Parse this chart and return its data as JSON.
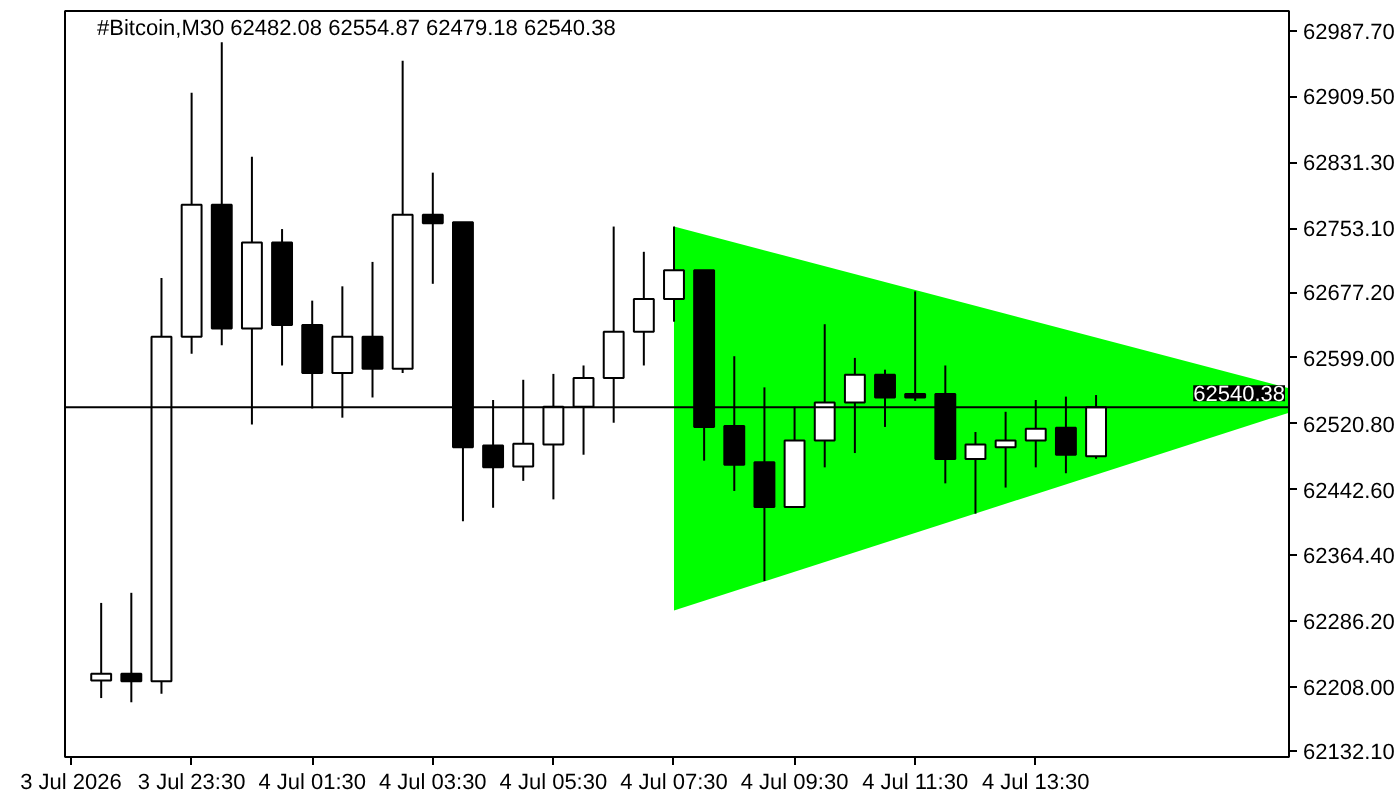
{
  "chart_data": {
    "type": "candlestick",
    "title": "#Bitcoin,M30  62482.08 62554.87 62479.18 62540.38",
    "x": [
      "2026-07-03T22:00",
      "2026-07-03T22:30",
      "2026-07-03T23:00",
      "2026-07-03T23:30",
      "2026-07-04T00:00",
      "2026-07-04T00:30",
      "2026-07-04T01:00",
      "2026-07-04T01:30",
      "2026-07-04T02:00",
      "2026-07-04T02:30",
      "2026-07-04T03:00",
      "2026-07-04T03:30",
      "2026-07-04T04:00",
      "2026-07-04T04:30",
      "2026-07-04T05:00",
      "2026-07-04T05:30",
      "2026-07-04T06:00",
      "2026-07-04T06:30",
      "2026-07-04T07:00",
      "2026-07-04T07:30",
      "2026-07-04T08:00",
      "2026-07-04T08:30",
      "2026-07-04T09:00",
      "2026-07-04T09:30",
      "2026-07-04T10:00",
      "2026-07-04T10:30",
      "2026-07-04T11:00",
      "2026-07-04T11:30",
      "2026-07-04T12:00",
      "2026-07-04T12:30",
      "2026-07-04T13:00",
      "2026-07-04T13:30",
      "2026-07-04T14:00",
      "2026-07-04T14:30"
    ],
    "ohlc": [
      [
        62216,
        62308,
        62195,
        62224
      ],
      [
        62224,
        62320,
        62190,
        62215
      ],
      [
        62215,
        62694,
        62200,
        62624
      ],
      [
        62624,
        62914,
        62604,
        62781
      ],
      [
        62781,
        62974,
        62614,
        62634
      ],
      [
        62634,
        62838,
        62520,
        62736
      ],
      [
        62736,
        62752,
        62590,
        62638
      ],
      [
        62638,
        62667,
        62539,
        62581
      ],
      [
        62581,
        62684,
        62528,
        62624
      ],
      [
        62624,
        62713,
        62552,
        62586
      ],
      [
        62586,
        62952,
        62581,
        62769
      ],
      [
        62769,
        62819,
        62687,
        62759
      ],
      [
        62760,
        62760,
        62405,
        62493
      ],
      [
        62495,
        62549,
        62421,
        62469
      ],
      [
        62470,
        62573,
        62453,
        62497
      ],
      [
        62496,
        62580,
        62431,
        62541
      ],
      [
        62541,
        62590,
        62484,
        62575
      ],
      [
        62575,
        62755,
        62522,
        62630
      ],
      [
        62630,
        62725,
        62590,
        62669
      ],
      [
        62669,
        62755,
        62642,
        62703
      ],
      [
        62703,
        62703,
        62477,
        62517
      ],
      [
        62518,
        62601,
        62441,
        62472
      ],
      [
        62475,
        62564,
        62334,
        62422
      ],
      [
        62422,
        62541,
        62422,
        62501
      ],
      [
        62501,
        62639,
        62469,
        62546
      ],
      [
        62546,
        62599,
        62486,
        62579
      ],
      [
        62579,
        62585,
        62517,
        62552
      ],
      [
        62556,
        62678,
        62548,
        62552
      ],
      [
        62556,
        62590,
        62450,
        62479
      ],
      [
        62479,
        62511,
        62414,
        62496
      ],
      [
        62493,
        62535,
        62445,
        62501
      ],
      [
        62501,
        62549,
        62469,
        62515
      ],
      [
        62516,
        62553,
        62462,
        62484
      ],
      [
        62482.08,
        62554.87,
        62479.18,
        62540.38
      ]
    ],
    "color": "#000000",
    "colors": [
      "#ffffff",
      "#000000",
      "#ffffff",
      "#ffffff",
      "#000000",
      "#ffffff",
      "#000000",
      "#000000",
      "#ffffff",
      "#000000",
      "#ffffff",
      "#000000",
      "#000000",
      "#000000",
      "#ffffff",
      "#ffffff",
      "#ffffff",
      "#ffffff",
      "#ffffff",
      "#ffffff",
      "#000000",
      "#000000",
      "#000000",
      "#ffffff",
      "#ffffff",
      "#ffffff",
      "#000000",
      "#000000",
      "#000000",
      "#ffffff",
      "#ffffff",
      "#ffffff",
      "#000000",
      "#ffffff"
    ],
    "series": [
      {
        "type": "area",
        "color": "#00ff00",
        "x": [
          "2026-07-04T07:30",
          "2026-07-04T17:42"
        ],
        "values": [
          null,
          null
        ],
        "lower": [
          62299,
          62534
        ],
        "upper": [
          62755,
          62563
        ]
      }
    ],
    "xlim": [
      "2026-07-03T21:24",
      "2026-07-04T17:42"
    ],
    "ylim": [
      62125,
      63011
    ],
    "xticks": [
      {
        "value": "2026-07-03T21:30",
        "label": "3 Jul 2026"
      },
      {
        "value": "2026-07-03T23:30",
        "label": "3 Jul 23:30"
      },
      {
        "value": "2026-07-04T01:30",
        "label": "4 Jul 01:30"
      },
      {
        "value": "2026-07-04T03:30",
        "label": "4 Jul 03:30"
      },
      {
        "value": "2026-07-04T05:30",
        "label": "4 Jul 05:30"
      },
      {
        "value": "2026-07-04T07:30",
        "label": "4 Jul 07:30"
      },
      {
        "value": "2026-07-04T09:30",
        "label": "4 Jul 09:30"
      },
      {
        "value": "2026-07-04T11:30",
        "label": "4 Jul 11:30"
      },
      {
        "value": "2026-07-04T13:30",
        "label": "4 Jul 13:30"
      }
    ],
    "yticks": [
      {
        "value": 62987.7,
        "label": "62987.70"
      },
      {
        "value": 62909.5,
        "label": "62909.50"
      },
      {
        "value": 62831.3,
        "label": "62831.30"
      },
      {
        "value": 62753.1,
        "label": "62753.10"
      },
      {
        "value": 62677.2,
        "label": "62677.20"
      },
      {
        "value": 62599.0,
        "label": "62599.00"
      },
      {
        "value": 62520.8,
        "label": "62520.80"
      },
      {
        "value": 62442.6,
        "label": "62442.60"
      },
      {
        "value": 62364.4,
        "label": "62364.40"
      },
      {
        "value": 62286.2,
        "label": "62286.20"
      },
      {
        "value": 62208.0,
        "label": "62208.00"
      },
      {
        "value": 62132.1,
        "label": "62132.10"
      }
    ],
    "ref_lines": [
      {
        "axis": "y",
        "value": 62540.38,
        "label": "62540.38",
        "color": "#000000"
      }
    ]
  }
}
